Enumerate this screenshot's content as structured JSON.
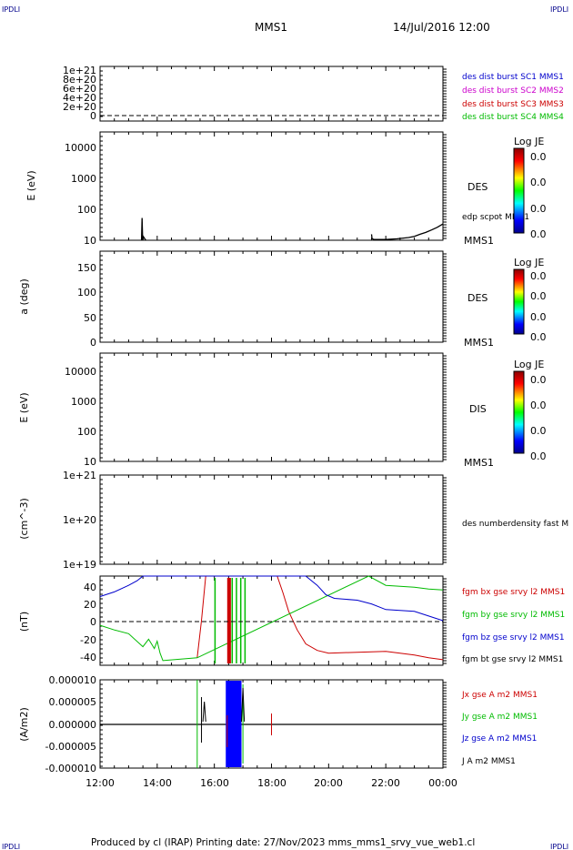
{
  "header": {
    "corner_label": "IPDLI",
    "title": "MMS1",
    "date": "14/Jul/2016 12:00"
  },
  "footer": {
    "text": "Produced by cl (IRAP)   Printing date: 27/Nov/2023   mms_mms1_srvy_vue_web1.cl"
  },
  "time_axis": {
    "start_hours": 12,
    "end_hours": 24,
    "tick_labels": [
      "12:00",
      "14:00",
      "16:00",
      "18:00",
      "20:00",
      "22:00",
      "00:00"
    ]
  },
  "panels": {
    "p1": {
      "yticks": [
        "1e+21",
        "8e+20",
        "6e+20",
        "4e+20",
        "2e+20",
        "0"
      ],
      "legend": [
        {
          "text": "des dist burst SC1 MMS1",
          "color": "#0000cc"
        },
        {
          "text": "des dist burst SC2 MMS2",
          "color": "#cc00cc"
        },
        {
          "text": "des dist burst SC3 MMS3",
          "color": "#cc0000"
        },
        {
          "text": "des dist burst SC4 MMS4",
          "color": "#00bb00"
        }
      ]
    },
    "p2": {
      "ylabel": "E (eV)",
      "yticks": [
        "10000",
        "1000",
        "100",
        "10"
      ],
      "species": "DES",
      "sc_label": "MMS1",
      "line_label": "edp scpot MMS1",
      "colorbar_title": "Log JE",
      "colorbar_ticks": [
        "0.0",
        "0.0",
        "0.0",
        "0.0"
      ]
    },
    "p3": {
      "ylabel": "a (deg)",
      "yticks": [
        "150",
        "100",
        "50",
        "0"
      ],
      "species": "DES",
      "sc_label": "MMS1",
      "colorbar_title": "Log JE",
      "colorbar_ticks": [
        "0.0",
        "0.0",
        "0.0",
        "0.0"
      ]
    },
    "p4": {
      "ylabel": "E (eV)",
      "yticks": [
        "10000",
        "1000",
        "100",
        "10"
      ],
      "species": "DIS",
      "sc_label": "MMS1",
      "colorbar_title": "Log JE",
      "colorbar_ticks": [
        "0.0",
        "0.0",
        "0.0",
        "0.0"
      ]
    },
    "p5": {
      "ylabel": "(cm^-3)",
      "yticks": [
        "1e+21",
        "1e+20",
        "1e+19"
      ],
      "legend": [
        {
          "text": "des numberdensity fast M",
          "color": "#000000"
        }
      ]
    },
    "p6": {
      "ylabel": "(nT)",
      "yticks": [
        "40",
        "20",
        "0",
        "-20",
        "-40"
      ],
      "legend": [
        {
          "text": "fgm bx gse srvy l2 MMS1",
          "color": "#cc0000"
        },
        {
          "text": "fgm by gse srvy l2 MMS1",
          "color": "#00bb00"
        },
        {
          "text": "fgm bz gse srvy l2 MMS1",
          "color": "#0000cc"
        },
        {
          "text": "fgm bt gse srvy l2 MMS1",
          "color": "#000000"
        }
      ]
    },
    "p7": {
      "ylabel": "(A/m2)",
      "yticks": [
        "0.000010",
        "0.000005",
        "0.000000",
        "-0.000005",
        "-0.000010"
      ],
      "legend": [
        {
          "text": "Jx gse A m2 MMS1",
          "color": "#cc0000"
        },
        {
          "text": "Jy gse A m2 MMS1",
          "color": "#00bb00"
        },
        {
          "text": "Jz gse A m2 MMS1",
          "color": "#0000cc"
        },
        {
          "text": "J A m2 MMS1",
          "color": "#000000"
        }
      ]
    }
  },
  "chart_data": [
    {
      "type": "line",
      "title": "des dist burst",
      "xlabel": "",
      "ylabel": "",
      "ylim": [
        0,
        1.2e+21
      ],
      "series": [
        {
          "name": "des dist burst SC1 MMS1",
          "values": []
        },
        {
          "name": "des dist burst SC2 MMS2",
          "values": []
        },
        {
          "name": "des dist burst SC3 MMS3",
          "values": []
        },
        {
          "name": "des dist burst SC4 MMS4",
          "values": []
        }
      ],
      "reference_line": 0
    },
    {
      "type": "line",
      "ylabel": "E (eV)",
      "scale": "log",
      "ylim": [
        10,
        15000
      ],
      "series": [
        {
          "name": "edp scpot MMS1",
          "x": [
            13.45,
            13.47,
            13.49,
            13.5,
            13.51,
            13.6,
            21.5,
            21.52,
            21.6,
            22.0,
            22.4,
            22.8,
            23.0,
            23.2,
            23.4,
            23.6,
            23.8,
            24.0
          ],
          "y": [
            10,
            45,
            12,
            10,
            13,
            10,
            15,
            11,
            10.5,
            10.5,
            11,
            12,
            13,
            15,
            17,
            20,
            24,
            30
          ]
        }
      ]
    },
    {
      "type": "heatmap",
      "ylabel": "a (deg)",
      "ylim": [
        0,
        180
      ]
    },
    {
      "type": "heatmap",
      "ylabel": "E (eV)",
      "scale": "log",
      "ylim": [
        10,
        15000
      ]
    },
    {
      "type": "line",
      "ylabel": "(cm^-3)",
      "scale": "log",
      "ylim": [
        1e+19,
        1e+21
      ],
      "series": [
        {
          "name": "des numberdensity fast M",
          "values": []
        }
      ]
    },
    {
      "type": "line",
      "ylabel": "(nT)",
      "ylim": [
        -48,
        48
      ],
      "reference_line": 0,
      "series": [
        {
          "name": "fgm bx gse srvy l2 MMS1",
          "x": [
            15.4,
            15.55,
            15.7,
            18.2,
            18.4,
            18.6,
            18.9,
            19.2,
            19.6,
            20.0,
            21.0,
            22.0,
            23.0,
            23.5,
            24.0
          ],
          "y": [
            -40,
            0,
            48,
            48,
            30,
            10,
            -10,
            -25,
            -32,
            -35,
            -34,
            -33,
            -37,
            -40,
            -42
          ]
        },
        {
          "name": "fgm by gse srvy l2 MMS1",
          "x": [
            12.0,
            12.5,
            13.0,
            13.5,
            13.7,
            13.9,
            14.0,
            14.1,
            14.2,
            15.4,
            21.4,
            22.0,
            23.0,
            23.5,
            24.0
          ],
          "y": [
            -5,
            -10,
            -14,
            -28,
            -20,
            -30,
            -22,
            -35,
            -43,
            -40,
            48,
            38,
            36,
            34,
            33
          ]
        },
        {
          "name": "fgm bz gse srvy l2 MMS1",
          "x": [
            12.0,
            12.5,
            13.0,
            13.3,
            13.5,
            19.2,
            19.6,
            19.9,
            20.2,
            21.0,
            21.5,
            22.0,
            23.0,
            23.5,
            24.0
          ],
          "y": [
            26,
            31,
            38,
            43,
            48,
            48,
            38,
            28,
            24,
            22,
            18,
            12,
            10,
            5,
            0
          ]
        }
      ]
    },
    {
      "type": "line",
      "ylabel": "(A/m2)",
      "ylim": [
        -1e-05,
        1e-05
      ],
      "series": [
        {
          "name": "Jx gse A m2 MMS1",
          "values": []
        },
        {
          "name": "Jy gse A m2 MMS1",
          "values": []
        },
        {
          "name": "Jz gse A m2 MMS1",
          "values": []
        },
        {
          "name": "J A m2 MMS1",
          "values": []
        }
      ]
    }
  ]
}
